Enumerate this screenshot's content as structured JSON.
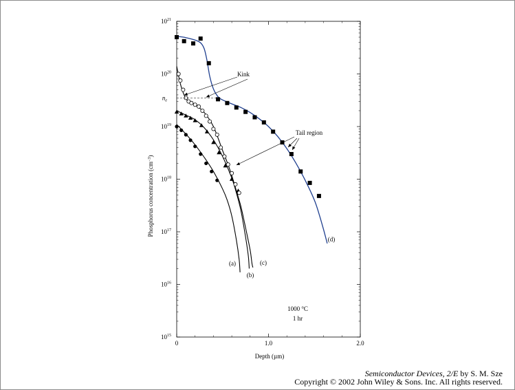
{
  "chart_data": {
    "type": "scatter",
    "title": "",
    "xlabel": "Depth (µm)",
    "ylabel": "Phosphorus concentration (cm",
    "ylabel_exp": "−3",
    "ylabel_close": ")",
    "x_scale": "linear",
    "y_scale": "log",
    "xlim": [
      0,
      2.0
    ],
    "ylim": [
      1000000000000000.0,
      1e+21
    ],
    "x_ticks": [
      0,
      1.0,
      2.0
    ],
    "x_tick_labels": [
      "0",
      "1.0",
      "2.0"
    ],
    "y_ticks": [
      15,
      16,
      17,
      18,
      19,
      20,
      21
    ],
    "y_tick_base": "10",
    "y_tick_exps": [
      "15",
      "16",
      "17",
      "18",
      "19",
      "20",
      "21"
    ],
    "grid": false,
    "series": [
      {
        "name": "(a)",
        "marker": "filled-circle",
        "points": [
          [
            0,
            1e+19
          ],
          [
            0.05,
            8.5e+18
          ],
          [
            0.1,
            7e+18
          ],
          [
            0.15,
            5.5e+18
          ],
          [
            0.2,
            4.2e+18
          ],
          [
            0.26,
            3e+18
          ],
          [
            0.32,
            2e+18
          ],
          [
            0.38,
            1.4e+18
          ],
          [
            0.44,
            9.5e+17
          ]
        ],
        "curve": [
          [
            0,
            1.1e+19
          ],
          [
            0.1,
            7.2e+18
          ],
          [
            0.2,
            4.5e+18
          ],
          [
            0.3,
            2.6e+18
          ],
          [
            0.4,
            1.4e+18
          ],
          [
            0.5,
            6.5e+17
          ],
          [
            0.55,
            4e+17
          ],
          [
            0.6,
            2e+17
          ],
          [
            0.65,
            7e+16
          ],
          [
            0.68,
            3e+16
          ],
          [
            0.69,
            1.7e+16
          ]
        ]
      },
      {
        "name": "(b)",
        "marker": "filled-triangle",
        "points": [
          [
            0,
            1.9e+19
          ],
          [
            0.05,
            1.75e+19
          ],
          [
            0.1,
            1.6e+19
          ],
          [
            0.15,
            1.45e+19
          ],
          [
            0.2,
            1.3e+19
          ],
          [
            0.27,
            1.05e+19
          ],
          [
            0.33,
            8e+18
          ],
          [
            0.4,
            5e+18
          ],
          [
            0.46,
            3.2e+18
          ],
          [
            0.53,
            1.8e+18
          ],
          [
            0.6,
            1e+18
          ],
          [
            0.67,
            6e+17
          ]
        ],
        "curve": [
          [
            0,
            2e+19
          ],
          [
            0.1,
            1.65e+19
          ],
          [
            0.2,
            1.35e+19
          ],
          [
            0.3,
            9.5e+18
          ],
          [
            0.4,
            5.6e+18
          ],
          [
            0.5,
            2.7e+18
          ],
          [
            0.6,
            1.05e+18
          ],
          [
            0.65,
            5.5e+17
          ],
          [
            0.7,
            2.5e+17
          ],
          [
            0.75,
            8e+16
          ],
          [
            0.78,
            3.5e+16
          ],
          [
            0.79,
            2e+16
          ]
        ]
      },
      {
        "name": "(c)",
        "marker": "open-circle",
        "points": [
          [
            0.02,
            1e+20
          ],
          [
            0.04,
            7.5e+19
          ],
          [
            0.07,
            5e+19
          ],
          [
            0.1,
            3.5e+19
          ],
          [
            0.13,
            3e+19
          ],
          [
            0.16,
            2.8e+19
          ],
          [
            0.2,
            2.6e+19
          ],
          [
            0.24,
            2.4e+19
          ],
          [
            0.28,
            2e+19
          ],
          [
            0.32,
            1.6e+19
          ],
          [
            0.36,
            1.25e+19
          ],
          [
            0.4,
            9e+18
          ],
          [
            0.44,
            7e+18
          ],
          [
            0.48,
            4e+18
          ],
          [
            0.52,
            2.7e+18
          ],
          [
            0.56,
            1.9e+18
          ],
          [
            0.6,
            1.3e+18
          ],
          [
            0.64,
            8e+17
          ],
          [
            0.68,
            5.5e+17
          ]
        ],
        "curve": [
          [
            0,
            1.4e+20
          ],
          [
            0.04,
            6.5e+19
          ],
          [
            0.08,
            4e+19
          ],
          [
            0.12,
            3.1e+19
          ],
          [
            0.2,
            2.6e+19
          ],
          [
            0.3,
            1.85e+19
          ],
          [
            0.4,
            1e+19
          ],
          [
            0.5,
            3.5e+18
          ],
          [
            0.58,
            1.5e+18
          ],
          [
            0.65,
            6e+17
          ],
          [
            0.7,
            3e+17
          ],
          [
            0.75,
            1.2e+17
          ],
          [
            0.8,
            4.5e+16
          ],
          [
            0.82,
            2.5e+16
          ],
          [
            0.83,
            2.1e+16
          ]
        ]
      },
      {
        "name": "(d)",
        "marker": "filled-square",
        "points": [
          [
            0,
            5e+20
          ],
          [
            0.08,
            4.2e+20
          ],
          [
            0.18,
            3.8e+20
          ],
          [
            0.26,
            4.7e+20
          ],
          [
            0.35,
            1.6e+20
          ],
          [
            0.45,
            3.3e+19
          ],
          [
            0.55,
            2.8e+19
          ],
          [
            0.65,
            2.3e+19
          ],
          [
            0.75,
            1.9e+19
          ],
          [
            0.85,
            1.5e+19
          ],
          [
            0.95,
            1.2e+19
          ],
          [
            1.05,
            8e+18
          ],
          [
            1.15,
            5e+18
          ],
          [
            1.25,
            3e+18
          ],
          [
            1.35,
            1.4e+18
          ],
          [
            1.45,
            8.5e+17
          ],
          [
            1.55,
            4.8e+17
          ]
        ],
        "curve": [
          [
            0,
            5.2e+20
          ],
          [
            0.1,
            4.9e+20
          ],
          [
            0.2,
            4.4e+20
          ],
          [
            0.26,
            3.9e+20
          ],
          [
            0.3,
            3e+20
          ],
          [
            0.33,
            1.8e+20
          ],
          [
            0.36,
            9e+19
          ],
          [
            0.4,
            5.2e+19
          ],
          [
            0.45,
            3.7e+19
          ],
          [
            0.5,
            3.2e+19
          ],
          [
            0.6,
            2.7e+19
          ],
          [
            0.7,
            2.3e+19
          ],
          [
            0.8,
            1.85e+19
          ],
          [
            0.9,
            1.4e+19
          ],
          [
            1.0,
            1e+19
          ],
          [
            1.1,
            6.5e+18
          ],
          [
            1.2,
            3.8e+18
          ],
          [
            1.3,
            2e+18
          ],
          [
            1.4,
            9.5e+17
          ],
          [
            1.5,
            4e+17
          ],
          [
            1.55,
            2.2e+17
          ],
          [
            1.6,
            1.1e+17
          ],
          [
            1.64,
            6e+16
          ]
        ]
      }
    ],
    "ne_level": 3.5e+19,
    "annotations": {
      "ne_main": "n",
      "ne_sub": "e",
      "kink": "Kink",
      "tail_region": "Tail region",
      "temp": "1000 °C",
      "time": "1 hr",
      "label_a": "(a)",
      "label_b": "(b)",
      "label_c": "(c)",
      "label_d": "(d)"
    }
  },
  "caption": {
    "book_title": "Semiconductor Devices, 2/E",
    "by_author": " by S. M. Sze",
    "copyright": "Copyright © 2002 John Wiley & Sons. Inc. All rights reserved."
  }
}
